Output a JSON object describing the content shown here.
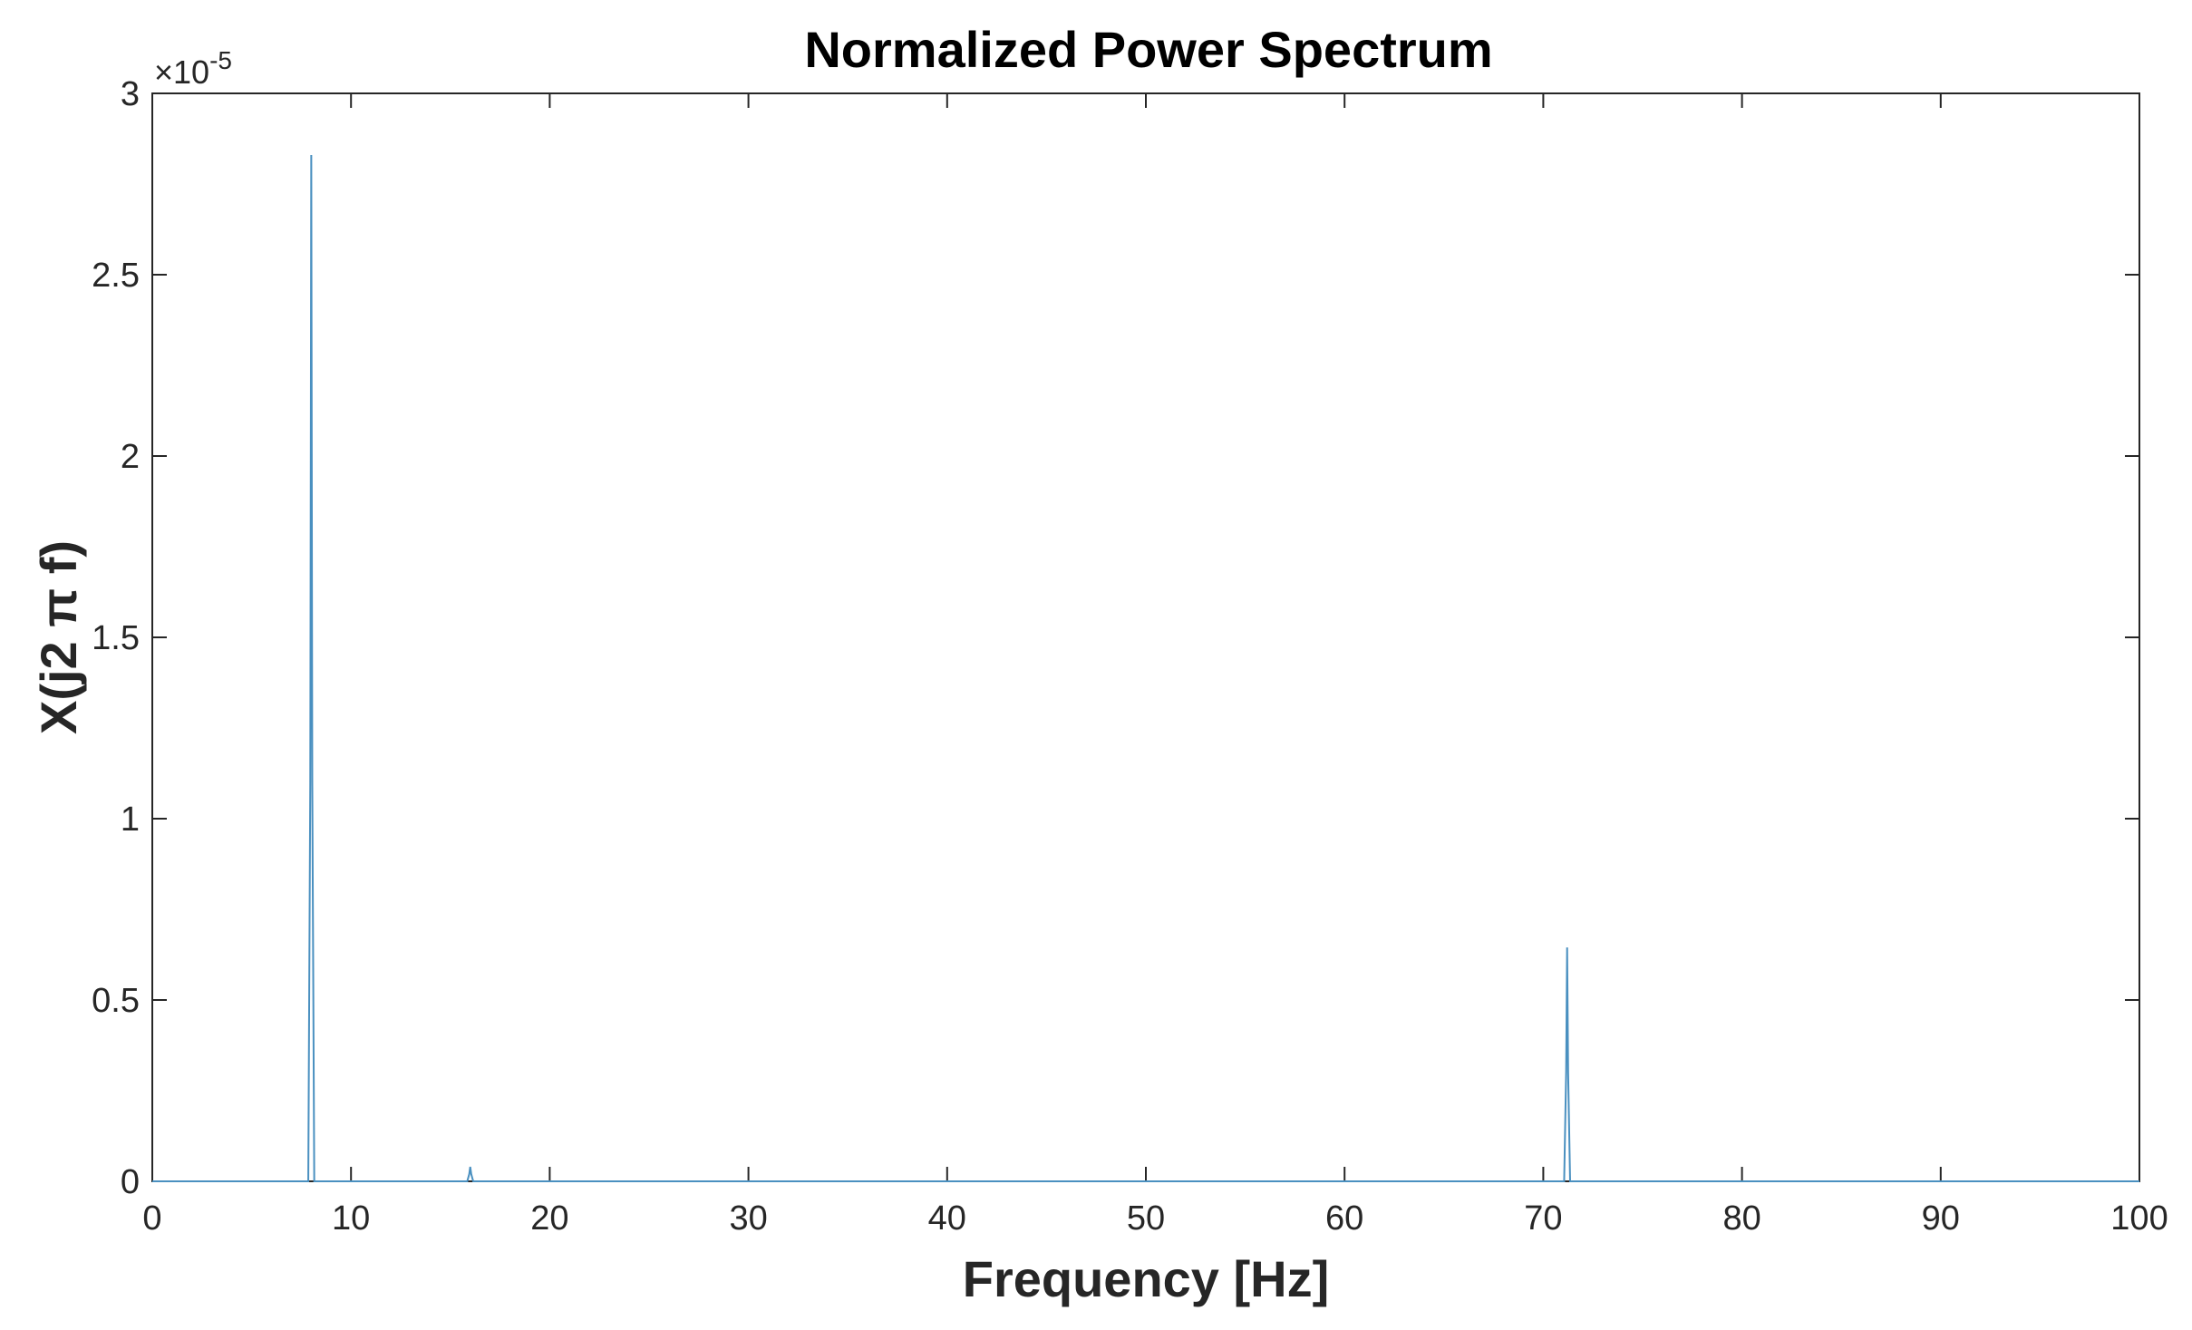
{
  "chart_data": {
    "type": "line",
    "title": "Normalized Power Spectrum",
    "xlabel": "Frequency [Hz]",
    "ylabel": "X(j2 π f)",
    "y_exponent_label": "×10",
    "y_exponent_power": "-5",
    "xlim": [
      0,
      100
    ],
    "ylim": [
      0,
      3
    ],
    "x_ticks": [
      0,
      10,
      20,
      30,
      40,
      50,
      60,
      70,
      80,
      90,
      100
    ],
    "x_tick_labels": [
      "0",
      "10",
      "20",
      "30",
      "40",
      "50",
      "60",
      "70",
      "80",
      "90",
      "100"
    ],
    "y_ticks": [
      0,
      0.5,
      1,
      1.5,
      2,
      2.5,
      3
    ],
    "y_tick_labels": [
      "0",
      "0.5",
      "1",
      "1.5",
      "2",
      "2.5",
      "3"
    ],
    "grid": false,
    "series": [
      {
        "color": "#4A90C0",
        "x": [
          0,
          7.85,
          7.95,
          8.0,
          8.05,
          8.15,
          15.85,
          15.95,
          16.0,
          16.05,
          16.15,
          71.05,
          71.15,
          71.2,
          71.25,
          71.35,
          100
        ],
        "y": [
          0,
          0,
          1.1,
          2.83,
          1.1,
          0,
          0,
          0.02,
          0.04,
          0.02,
          0,
          0,
          0.3,
          0.645,
          0.3,
          0,
          0
        ]
      }
    ]
  }
}
